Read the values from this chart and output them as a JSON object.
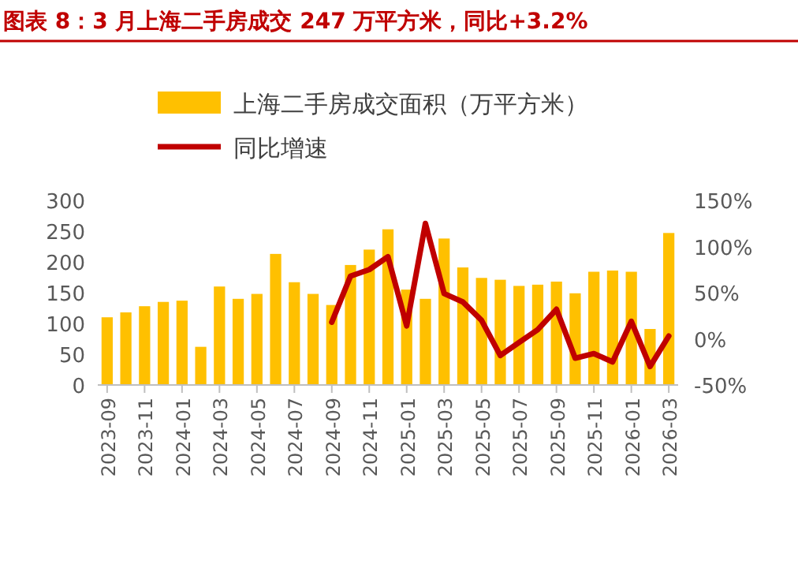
{
  "chart_data": {
    "type": "bar",
    "title": "图表 8：3 月上海二手房成交 247 万平方米，同比+3.2%",
    "categories": [
      "2023-09",
      null,
      "2023-11",
      null,
      "2024-01",
      null,
      "2024-03",
      null,
      "2024-05",
      null,
      "2024-07",
      null,
      "2024-09",
      null,
      "2024-11",
      null,
      "2025-01",
      null,
      "2025-03",
      null,
      "2025-05",
      null,
      "2025-07",
      null,
      "2025-09",
      null,
      "2025-11",
      null,
      "2026-01",
      null,
      "2026-03"
    ],
    "series": [
      {
        "name": "上海二手房成交面积（万平方米）",
        "color": "#ffc000",
        "values": [
          110,
          118,
          128,
          135,
          137,
          62,
          160,
          140,
          148,
          213,
          167,
          148,
          130,
          195,
          220,
          253,
          155,
          140,
          238,
          191,
          174,
          171,
          161,
          163,
          168,
          149,
          184,
          186,
          184,
          91,
          247
        ]
      },
      {
        "name": "同比增速",
        "type": "line",
        "axis": "y2",
        "color": "#c00000",
        "values": [
          null,
          null,
          null,
          null,
          null,
          null,
          null,
          null,
          null,
          null,
          null,
          null,
          18,
          68,
          75,
          89,
          14,
          125,
          49,
          40,
          20,
          -18,
          -4,
          10,
          32,
          -21,
          -16,
          -25,
          19,
          -30,
          3
        ]
      }
    ],
    "ylim": [
      0,
      300
    ],
    "yticks": [
      0,
      50,
      100,
      150,
      200,
      250,
      300
    ],
    "y2lim": [
      -50,
      150
    ],
    "y2ticks": [
      {
        "value": -50,
        "label": "-50%"
      },
      {
        "value": 0,
        "label": "0%"
      },
      {
        "value": 50,
        "label": "50%"
      },
      {
        "value": 100,
        "label": "100%"
      },
      {
        "value": 150,
        "label": "150%"
      }
    ],
    "legend": "top",
    "grid": false
  }
}
